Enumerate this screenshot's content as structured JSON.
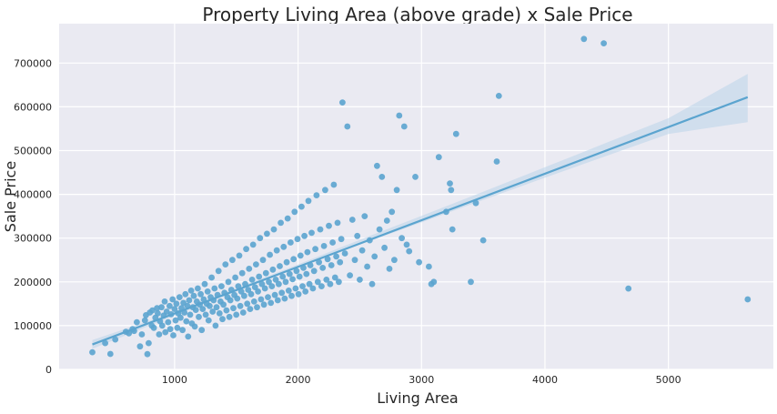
{
  "chart_data": {
    "type": "scatter",
    "title": "Property Living Area (above grade) x Sale Price",
    "xlabel": "Living Area",
    "ylabel": "Sale Price",
    "xlim": [
      65,
      5850
    ],
    "ylim": [
      0,
      790000
    ],
    "x_ticks": [
      "1000",
      "2000",
      "3000",
      "4000",
      "5000"
    ],
    "y_ticks": [
      "0",
      "100000",
      "200000",
      "300000",
      "400000",
      "500000",
      "600000",
      "700000"
    ],
    "x_tick_values": [
      1000,
      2000,
      3000,
      4000,
      5000
    ],
    "y_tick_values": [
      0,
      100000,
      200000,
      300000,
      400000,
      500000,
      600000,
      700000
    ],
    "grid": true,
    "background_color": "#eaeaf2",
    "point_color": "#5ba4cf",
    "line_color": "#5ba4cf",
    "band_color": "#b9d3ea",
    "points": [
      [
        334,
        39300
      ],
      [
        438,
        60000
      ],
      [
        480,
        35311
      ],
      [
        520,
        68500
      ],
      [
        605,
        86000
      ],
      [
        630,
        82500
      ],
      [
        660,
        92000
      ],
      [
        672,
        88000
      ],
      [
        694,
        108000
      ],
      [
        720,
        52500
      ],
      [
        735,
        80000
      ],
      [
        760,
        112000
      ],
      [
        768,
        124000
      ],
      [
        780,
        35000
      ],
      [
        790,
        60000
      ],
      [
        800,
        130000
      ],
      [
        815,
        100000
      ],
      [
        820,
        135000
      ],
      [
        832,
        95000
      ],
      [
        845,
        118000
      ],
      [
        858,
        140000
      ],
      [
        864,
        128000
      ],
      [
        875,
        80000
      ],
      [
        882,
        110000
      ],
      [
        894,
        142000
      ],
      [
        900,
        100000
      ],
      [
        912,
        123000
      ],
      [
        920,
        155000
      ],
      [
        925,
        85000
      ],
      [
        936,
        132000
      ],
      [
        948,
        108000
      ],
      [
        960,
        145000
      ],
      [
        965,
        92000
      ],
      [
        972,
        126000
      ],
      [
        984,
        160000
      ],
      [
        990,
        78000
      ],
      [
        1000,
        138000
      ],
      [
        1008,
        112000
      ],
      [
        1015,
        150000
      ],
      [
        1022,
        95000
      ],
      [
        1030,
        128000
      ],
      [
        1040,
        165000
      ],
      [
        1048,
        118000
      ],
      [
        1056,
        140000
      ],
      [
        1064,
        90000
      ],
      [
        1072,
        152000
      ],
      [
        1080,
        130000
      ],
      [
        1088,
        172000
      ],
      [
        1095,
        110000
      ],
      [
        1104,
        145000
      ],
      [
        1110,
        75000
      ],
      [
        1118,
        158000
      ],
      [
        1126,
        125000
      ],
      [
        1134,
        180000
      ],
      [
        1140,
        105000
      ],
      [
        1148,
        142000
      ],
      [
        1156,
        168000
      ],
      [
        1164,
        98000
      ],
      [
        1172,
        136000
      ],
      [
        1180,
        155000
      ],
      [
        1188,
        185000
      ],
      [
        1196,
        120000
      ],
      [
        1204,
        148000
      ],
      [
        1212,
        172000
      ],
      [
        1220,
        90000
      ],
      [
        1228,
        138000
      ],
      [
        1236,
        160000
      ],
      [
        1244,
        195000
      ],
      [
        1252,
        125000
      ],
      [
        1260,
        150000
      ],
      [
        1268,
        178000
      ],
      [
        1276,
        112000
      ],
      [
        1284,
        145000
      ],
      [
        1292,
        165000
      ],
      [
        1300,
        210000
      ],
      [
        1308,
        132000
      ],
      [
        1316,
        158000
      ],
      [
        1324,
        185000
      ],
      [
        1332,
        100000
      ],
      [
        1340,
        142000
      ],
      [
        1348,
        170000
      ],
      [
        1356,
        225000
      ],
      [
        1364,
        128000
      ],
      [
        1372,
        155000
      ],
      [
        1380,
        190000
      ],
      [
        1388,
        115000
      ],
      [
        1396,
        148000
      ],
      [
        1404,
        175000
      ],
      [
        1412,
        240000
      ],
      [
        1420,
        135000
      ],
      [
        1428,
        165000
      ],
      [
        1436,
        200000
      ],
      [
        1444,
        120000
      ],
      [
        1452,
        158000
      ],
      [
        1460,
        182000
      ],
      [
        1468,
        250000
      ],
      [
        1476,
        140000
      ],
      [
        1484,
        170000
      ],
      [
        1492,
        210000
      ],
      [
        1500,
        125000
      ],
      [
        1508,
        162000
      ],
      [
        1516,
        190000
      ],
      [
        1524,
        260000
      ],
      [
        1532,
        145000
      ],
      [
        1540,
        178000
      ],
      [
        1548,
        220000
      ],
      [
        1556,
        130000
      ],
      [
        1564,
        168000
      ],
      [
        1572,
        195000
      ],
      [
        1580,
        275000
      ],
      [
        1588,
        150000
      ],
      [
        1596,
        182000
      ],
      [
        1604,
        230000
      ],
      [
        1612,
        138000
      ],
      [
        1620,
        172000
      ],
      [
        1628,
        205000
      ],
      [
        1636,
        285000
      ],
      [
        1644,
        155000
      ],
      [
        1652,
        188000
      ],
      [
        1660,
        240000
      ],
      [
        1668,
        142000
      ],
      [
        1676,
        178000
      ],
      [
        1684,
        212000
      ],
      [
        1692,
        300000
      ],
      [
        1700,
        160000
      ],
      [
        1708,
        195000
      ],
      [
        1716,
        250000
      ],
      [
        1724,
        148000
      ],
      [
        1732,
        185000
      ],
      [
        1740,
        220000
      ],
      [
        1748,
        310000
      ],
      [
        1756,
        165000
      ],
      [
        1764,
        200000
      ],
      [
        1772,
        262000
      ],
      [
        1780,
        152000
      ],
      [
        1788,
        190000
      ],
      [
        1796,
        228000
      ],
      [
        1804,
        320000
      ],
      [
        1812,
        170000
      ],
      [
        1820,
        205000
      ],
      [
        1828,
        272000
      ],
      [
        1836,
        158000
      ],
      [
        1844,
        195000
      ],
      [
        1852,
        236000
      ],
      [
        1860,
        335000
      ],
      [
        1868,
        175000
      ],
      [
        1876,
        212000
      ],
      [
        1884,
        280000
      ],
      [
        1892,
        162000
      ],
      [
        1900,
        200000
      ],
      [
        1908,
        245000
      ],
      [
        1916,
        345000
      ],
      [
        1924,
        180000
      ],
      [
        1932,
        218000
      ],
      [
        1940,
        290000
      ],
      [
        1948,
        168000
      ],
      [
        1956,
        206000
      ],
      [
        1964,
        252000
      ],
      [
        1972,
        360000
      ],
      [
        1980,
        185000
      ],
      [
        1988,
        225000
      ],
      [
        1996,
        298000
      ],
      [
        2004,
        172000
      ],
      [
        2012,
        212000
      ],
      [
        2020,
        260000
      ],
      [
        2028,
        372000
      ],
      [
        2036,
        190000
      ],
      [
        2044,
        232000
      ],
      [
        2052,
        305000
      ],
      [
        2060,
        178000
      ],
      [
        2068,
        218000
      ],
      [
        2076,
        268000
      ],
      [
        2084,
        385000
      ],
      [
        2092,
        195000
      ],
      [
        2100,
        238000
      ],
      [
        2110,
        312000
      ],
      [
        2120,
        185000
      ],
      [
        2130,
        225000
      ],
      [
        2140,
        275000
      ],
      [
        2150,
        398000
      ],
      [
        2160,
        200000
      ],
      [
        2170,
        245000
      ],
      [
        2180,
        320000
      ],
      [
        2190,
        190000
      ],
      [
        2200,
        232000
      ],
      [
        2210,
        282000
      ],
      [
        2220,
        410000
      ],
      [
        2230,
        205000
      ],
      [
        2240,
        252000
      ],
      [
        2250,
        328000
      ],
      [
        2260,
        195000
      ],
      [
        2270,
        238000
      ],
      [
        2280,
        290000
      ],
      [
        2290,
        422000
      ],
      [
        2300,
        210000
      ],
      [
        2310,
        258000
      ],
      [
        2320,
        335000
      ],
      [
        2330,
        200000
      ],
      [
        2340,
        245000
      ],
      [
        2350,
        298000
      ],
      [
        2360,
        610000
      ],
      [
        2380,
        265000
      ],
      [
        2400,
        555000
      ],
      [
        2420,
        215000
      ],
      [
        2440,
        342000
      ],
      [
        2460,
        250000
      ],
      [
        2480,
        305000
      ],
      [
        2500,
        205000
      ],
      [
        2520,
        272000
      ],
      [
        2540,
        350000
      ],
      [
        2560,
        235000
      ],
      [
        2580,
        295000
      ],
      [
        2600,
        195000
      ],
      [
        2620,
        258000
      ],
      [
        2640,
        465000
      ],
      [
        2660,
        320000
      ],
      [
        2680,
        440000
      ],
      [
        2700,
        278000
      ],
      [
        2720,
        340000
      ],
      [
        2740,
        230000
      ],
      [
        2760,
        360000
      ],
      [
        2780,
        250000
      ],
      [
        2800,
        410000
      ],
      [
        2820,
        580000
      ],
      [
        2840,
        300000
      ],
      [
        2860,
        555000
      ],
      [
        2880,
        285000
      ],
      [
        2900,
        270000
      ],
      [
        2950,
        440000
      ],
      [
        2980,
        245000
      ],
      [
        3060,
        235000
      ],
      [
        3080,
        195000
      ],
      [
        3100,
        200000
      ],
      [
        3140,
        485000
      ],
      [
        3200,
        360000
      ],
      [
        3230,
        425000
      ],
      [
        3240,
        410000
      ],
      [
        3250,
        320000
      ],
      [
        3280,
        538000
      ],
      [
        3400,
        200000
      ],
      [
        3440,
        380000
      ],
      [
        3500,
        295000
      ],
      [
        3610,
        475000
      ],
      [
        3627,
        625000
      ],
      [
        4316,
        755000
      ],
      [
        4476,
        745000
      ],
      [
        4676,
        184750
      ],
      [
        5642,
        160000
      ]
    ],
    "regression": {
      "x": [
        334,
        5642
      ],
      "y": [
        57000,
        622000
      ]
    },
    "confidence_band": {
      "x": [
        334,
        1000,
        1500,
        2000,
        2500,
        3000,
        3500,
        4000,
        4500,
        5000,
        5642
      ],
      "upper": [
        67000,
        131000,
        185000,
        240000,
        296000,
        351000,
        406000,
        462000,
        518000,
        574000,
        675000
      ],
      "lower": [
        47000,
        123000,
        178000,
        232000,
        285000,
        336000,
        387000,
        438000,
        488000,
        538000,
        565000
      ]
    }
  }
}
